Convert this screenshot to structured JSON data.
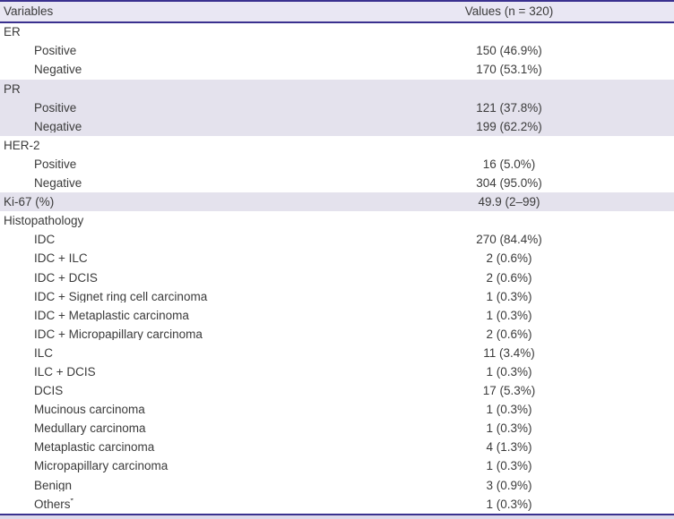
{
  "colors": {
    "accent": "#3a318f",
    "header_bg": "#e9e7f3",
    "row_shade": "#e4e2ed",
    "bottom_strip": "#dcd9ea",
    "text": "#3b3b3b"
  },
  "table": {
    "header": {
      "variables_label": "Variables",
      "values_label": "Values (n = 320)"
    },
    "rows": [
      {
        "label": "ER",
        "value": "",
        "indent": false,
        "shaded": false
      },
      {
        "label": "Positive",
        "value": "150 (46.9%)",
        "indent": true,
        "shaded": false
      },
      {
        "label": "Negative",
        "value": "170 (53.1%)",
        "indent": true,
        "shaded": false
      },
      {
        "label": "PR",
        "value": "",
        "indent": false,
        "shaded": true
      },
      {
        "label": "Positive",
        "value": "121 (37.8%)",
        "indent": true,
        "shaded": true
      },
      {
        "label": "Negative",
        "value": "199 (62.2%)",
        "indent": true,
        "shaded": true
      },
      {
        "label": "HER-2",
        "value": "",
        "indent": false,
        "shaded": false
      },
      {
        "label": "Positive",
        "value": "16 (5.0%)",
        "indent": true,
        "shaded": false
      },
      {
        "label": "Negative",
        "value": "304 (95.0%)",
        "indent": true,
        "shaded": false
      },
      {
        "label": "Ki-67 (%)",
        "value": "49.9 (2–99)",
        "indent": false,
        "shaded": true
      },
      {
        "label": "Histopathology",
        "value": "",
        "indent": false,
        "shaded": false
      },
      {
        "label": "IDC",
        "value": "270 (84.4%)",
        "indent": true,
        "shaded": false
      },
      {
        "label": "IDC + ILC",
        "value": "2 (0.6%)",
        "indent": true,
        "shaded": false
      },
      {
        "label": "IDC + DCIS",
        "value": "2 (0.6%)",
        "indent": true,
        "shaded": false
      },
      {
        "label": "IDC + Signet ring cell carcinoma",
        "value": "1 (0.3%)",
        "indent": true,
        "shaded": false
      },
      {
        "label": "IDC + Metaplastic carcinoma",
        "value": "1 (0.3%)",
        "indent": true,
        "shaded": false
      },
      {
        "label": "IDC + Micropapillary carcinoma",
        "value": "2 (0.6%)",
        "indent": true,
        "shaded": false
      },
      {
        "label": "ILC",
        "value": "11 (3.4%)",
        "indent": true,
        "shaded": false
      },
      {
        "label": "ILC + DCIS",
        "value": "1 (0.3%)",
        "indent": true,
        "shaded": false
      },
      {
        "label": "DCIS",
        "value": "17 (5.3%)",
        "indent": true,
        "shaded": false
      },
      {
        "label": "Mucinous carcinoma",
        "value": "1 (0.3%)",
        "indent": true,
        "shaded": false
      },
      {
        "label": "Medullary carcinoma",
        "value": "1 (0.3%)",
        "indent": true,
        "shaded": false
      },
      {
        "label": "Metaplastic carcinoma",
        "value": "4 (1.3%)",
        "indent": true,
        "shaded": false
      },
      {
        "label": "Micropapillary carcinoma",
        "value": "1 (0.3%)",
        "indent": true,
        "shaded": false
      },
      {
        "label": "Benign",
        "value": "3 (0.9%)",
        "indent": true,
        "shaded": false
      },
      {
        "label": "Others",
        "sup": "*",
        "value": "1 (0.3%)",
        "indent": true,
        "shaded": false
      }
    ]
  }
}
